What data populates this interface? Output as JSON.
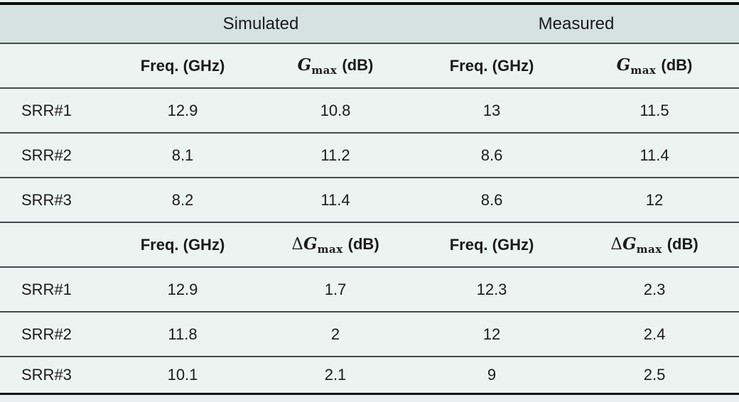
{
  "colors": {
    "band_bg": "#d5e3e0",
    "row_bg": "#edf3f1",
    "rule_black": "#0d0d0d",
    "rule_gray": "#414c4b",
    "text": "#1b1b1b"
  },
  "group_headers": {
    "simulated": "Simulated",
    "measured": "Measured"
  },
  "labels": {
    "freq": "Freq. (GHz)",
    "g_symbol": "G",
    "g_subscript": "max",
    "delta": "Δ",
    "unit_db": "(dB)"
  },
  "sections": [
    {
      "rows": [
        {
          "label": "SRR#1",
          "sim_freq": "12.9",
          "sim_g": "10.8",
          "meas_freq": "13",
          "meas_g": "11.5"
        },
        {
          "label": "SRR#2",
          "sim_freq": "8.1",
          "sim_g": "11.2",
          "meas_freq": "8.6",
          "meas_g": "11.4"
        },
        {
          "label": "SRR#3",
          "sim_freq": "8.2",
          "sim_g": "11.4",
          "meas_freq": "8.6",
          "meas_g": "12"
        }
      ]
    },
    {
      "rows": [
        {
          "label": "SRR#1",
          "sim_freq": "12.9",
          "sim_g": "1.7",
          "meas_freq": "12.3",
          "meas_g": "2.3"
        },
        {
          "label": "SRR#2",
          "sim_freq": "11.8",
          "sim_g": "2",
          "meas_freq": "12",
          "meas_g": "2.4"
        },
        {
          "label": "SRR#3",
          "sim_freq": "10.1",
          "sim_g": "2.1",
          "meas_freq": "9",
          "meas_g": "2.5"
        }
      ]
    }
  ],
  "chart_data": {
    "type": "table",
    "group_columns": [
      "Simulated",
      "Measured"
    ],
    "sections": [
      {
        "columns": [
          "",
          "Freq. (GHz)",
          "Gmax (dB)",
          "Freq. (GHz)",
          "Gmax (dB)"
        ],
        "rows": [
          [
            "SRR#1",
            12.9,
            10.8,
            13,
            11.5
          ],
          [
            "SRR#2",
            8.1,
            11.2,
            8.6,
            11.4
          ],
          [
            "SRR#3",
            8.2,
            11.4,
            8.6,
            12
          ]
        ]
      },
      {
        "columns": [
          "",
          "Freq. (GHz)",
          "ΔGmax (dB)",
          "Freq. (GHz)",
          "ΔGmax (dB)"
        ],
        "rows": [
          [
            "SRR#1",
            12.9,
            1.7,
            12.3,
            2.3
          ],
          [
            "SRR#2",
            11.8,
            2,
            12,
            2.4
          ],
          [
            "SRR#3",
            10.1,
            2.1,
            9,
            2.5
          ]
        ]
      }
    ]
  }
}
